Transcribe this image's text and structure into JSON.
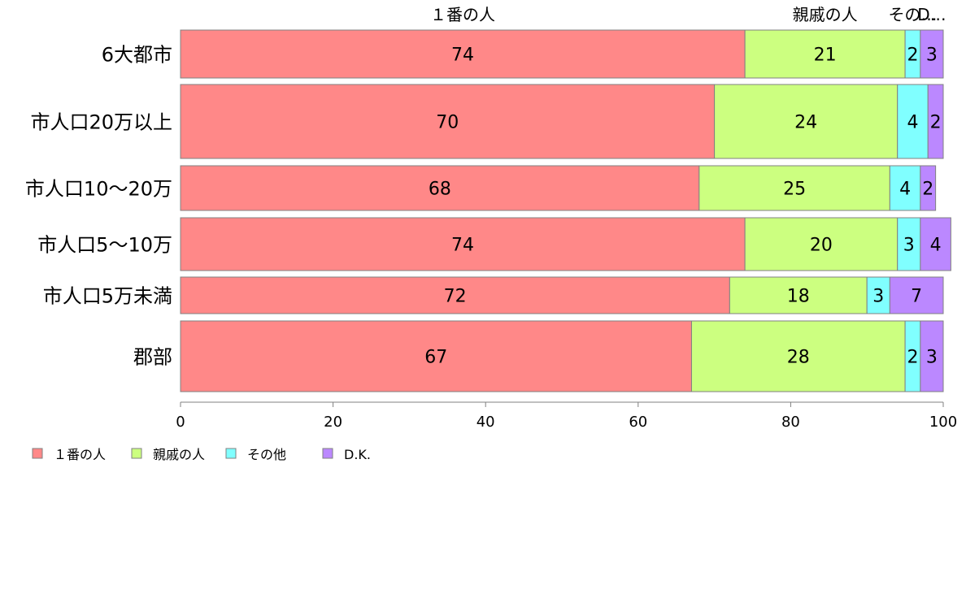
{
  "chart_data": {
    "type": "bar",
    "orientation": "horizontal",
    "stacked": true,
    "categories": [
      "6大都市",
      "市人口20万以上",
      "市人口10〜20万",
      "市人口5〜10万",
      "市人口5万未満",
      "郡部"
    ],
    "series": [
      {
        "name": "１番の人",
        "color": "#ff8888",
        "values": [
          74,
          70,
          68,
          74,
          72,
          67
        ]
      },
      {
        "name": "親戚の人",
        "color": "#ccff80",
        "values": [
          21,
          24,
          25,
          20,
          18,
          28
        ]
      },
      {
        "name": "その他",
        "color": "#80ffff",
        "values": [
          2,
          4,
          4,
          3,
          3,
          2
        ]
      },
      {
        "name": "D.K.",
        "color": "#bb88ff",
        "values": [
          3,
          2,
          2,
          4,
          7,
          3
        ]
      }
    ],
    "top_labels": [
      "１番の人",
      "親戚の人",
      "その…",
      "D…"
    ],
    "xlim": [
      0,
      100
    ],
    "xticks": [
      0,
      20,
      40,
      60,
      80,
      100
    ],
    "grid": false,
    "legend_position": "bottom-left"
  }
}
